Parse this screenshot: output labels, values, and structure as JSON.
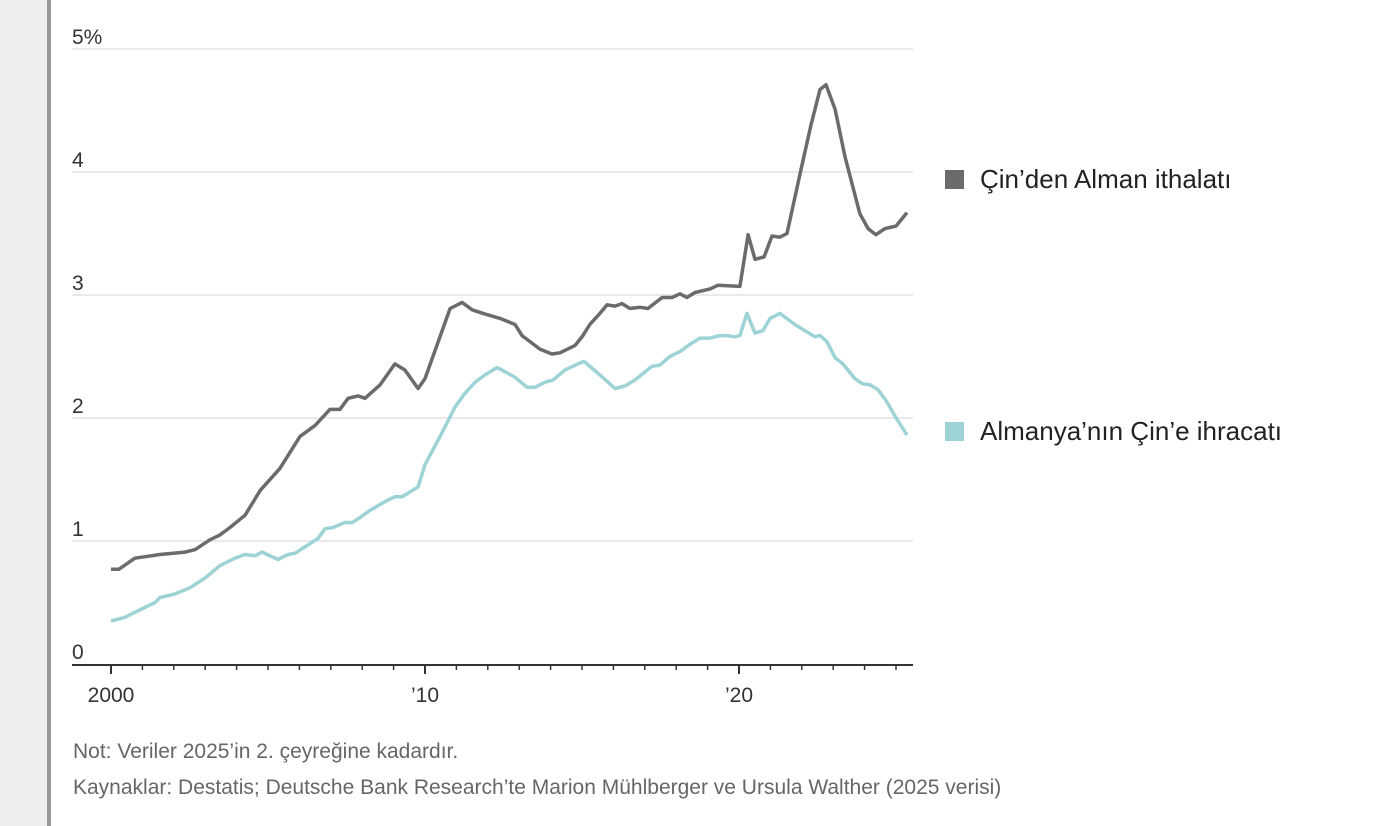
{
  "chart_data": {
    "type": "line",
    "title": "",
    "xlabel": "",
    "ylabel": "",
    "ylim": [
      0,
      5
    ],
    "xlim": [
      2000,
      2025.35
    ],
    "grid": true,
    "yticks": [
      {
        "value": 0,
        "label": "0"
      },
      {
        "value": 1,
        "label": "1"
      },
      {
        "value": 2,
        "label": "2"
      },
      {
        "value": 3,
        "label": "3"
      },
      {
        "value": 4,
        "label": "4"
      },
      {
        "value": 5,
        "label": "5%"
      }
    ],
    "xticks": [
      {
        "value": 2000,
        "label": "2000"
      },
      {
        "value": 2010,
        "label": "’10"
      },
      {
        "value": 2020,
        "label": "’20"
      }
    ],
    "minor_xticks": [
      2001,
      2002,
      2003,
      2004,
      2005,
      2006,
      2007,
      2008,
      2009,
      2011,
      2012,
      2013,
      2014,
      2015,
      2016,
      2017,
      2018,
      2019,
      2021,
      2022,
      2023,
      2024,
      2025
    ],
    "legend_placement": "right",
    "series": [
      {
        "name": "Çin’den Alman ithalatı",
        "color": "#6b6b6b",
        "x": [
          2000,
          2000.25,
          2000.76,
          2001.56,
          2002.36,
          2002.68,
          2003.15,
          2003.47,
          2003.79,
          2004.27,
          2004.75,
          2005.38,
          2006.02,
          2006.5,
          2006.97,
          2007.29,
          2007.55,
          2007.87,
          2008.09,
          2008.57,
          2009.04,
          2009.36,
          2009.78,
          2010,
          2010.8,
          2011.18,
          2011.5,
          2011.85,
          2012.39,
          2012.87,
          2013.09,
          2013.66,
          2014.04,
          2014.3,
          2014.78,
          2015.03,
          2015.25,
          2015.57,
          2015.8,
          2016.05,
          2016.27,
          2016.53,
          2016.85,
          2017.1,
          2017.55,
          2017.87,
          2018.12,
          2018.34,
          2018.6,
          2019.08,
          2019.33,
          2020.03,
          2020.29,
          2020.51,
          2020.8,
          2021.05,
          2021.3,
          2021.53,
          2021.94,
          2022.29,
          2022.58,
          2022.77,
          2023.06,
          2023.38,
          2023.85,
          2024.11,
          2024.36,
          2024.65,
          2025.0,
          2025.35
        ],
        "y": [
          0.77,
          0.77,
          0.86,
          0.89,
          0.91,
          0.93,
          1.01,
          1.05,
          1.11,
          1.21,
          1.41,
          1.59,
          1.85,
          1.94,
          2.07,
          2.07,
          2.16,
          2.18,
          2.16,
          2.27,
          2.44,
          2.39,
          2.24,
          2.32,
          2.89,
          2.94,
          2.88,
          2.85,
          2.81,
          2.76,
          2.67,
          2.56,
          2.52,
          2.53,
          2.59,
          2.67,
          2.76,
          2.85,
          2.92,
          2.91,
          2.93,
          2.89,
          2.9,
          2.89,
          2.98,
          2.98,
          3.01,
          2.98,
          3.02,
          3.05,
          3.08,
          3.07,
          3.49,
          3.29,
          3.31,
          3.48,
          3.47,
          3.5,
          3.98,
          4.38,
          4.67,
          4.71,
          4.51,
          4.12,
          3.66,
          3.54,
          3.49,
          3.54,
          3.56,
          3.67
        ]
      },
      {
        "name": "Almanya’nın Çin’e ihracatı",
        "color": "#9dd3d6",
        "x": [
          2000,
          2000.45,
          2000.76,
          2001.4,
          2001.56,
          2002.04,
          2002.52,
          2003.0,
          2003.47,
          2003.95,
          2004.27,
          2004.59,
          2004.81,
          2005.32,
          2005.64,
          2005.86,
          2006.34,
          2006.59,
          2006.82,
          2007.07,
          2007.45,
          2007.68,
          2007.93,
          2008.25,
          2008.73,
          2009.04,
          2009.27,
          2009.78,
          2010,
          2010.48,
          2010.96,
          2011.27,
          2011.59,
          2011.91,
          2012.29,
          2012.45,
          2012.87,
          2013.25,
          2013.5,
          2013.82,
          2014.08,
          2014.46,
          2014.87,
          2015.06,
          2015.57,
          2016.05,
          2016.37,
          2016.69,
          2017.23,
          2017.48,
          2017.8,
          2018.12,
          2018.44,
          2018.76,
          2019.08,
          2019.39,
          2019.62,
          2019.87,
          2020.03,
          2020.25,
          2020.51,
          2020.76,
          2020.99,
          2021.3,
          2021.78,
          2022.1,
          2022.42,
          2022.58,
          2022.8,
          2023.06,
          2023.31,
          2023.69,
          2023.92,
          2024.17,
          2024.43,
          2024.71,
          2025.03,
          2025.35
        ],
        "y": [
          0.35,
          0.38,
          0.42,
          0.5,
          0.54,
          0.57,
          0.62,
          0.7,
          0.8,
          0.86,
          0.89,
          0.88,
          0.91,
          0.85,
          0.89,
          0.9,
          0.98,
          1.02,
          1.1,
          1.11,
          1.15,
          1.15,
          1.19,
          1.25,
          1.32,
          1.36,
          1.36,
          1.44,
          1.62,
          1.85,
          2.09,
          2.2,
          2.29,
          2.35,
          2.41,
          2.39,
          2.33,
          2.25,
          2.25,
          2.29,
          2.31,
          2.39,
          2.44,
          2.46,
          2.35,
          2.24,
          2.26,
          2.31,
          2.42,
          2.43,
          2.5,
          2.54,
          2.6,
          2.65,
          2.65,
          2.67,
          2.67,
          2.66,
          2.67,
          2.85,
          2.69,
          2.71,
          2.81,
          2.85,
          2.76,
          2.71,
          2.66,
          2.67,
          2.62,
          2.49,
          2.44,
          2.32,
          2.28,
          2.27,
          2.23,
          2.13,
          1.99,
          1.86
        ]
      }
    ]
  },
  "legend": [
    {
      "label": "Çin’den Alman ithalatı",
      "color": "#6b6b6b"
    },
    {
      "label": "Almanya’nın Çin’e ihracatı",
      "color": "#9dd3d6"
    }
  ],
  "notes": {
    "note": "Not: Veriler 2025’in 2. çeyreğine kadardır.",
    "sources": "Kaynaklar: Destatis; Deutsche Bank Research’te Marion Mühlberger ve Ursula Walther (2025 verisi)"
  }
}
